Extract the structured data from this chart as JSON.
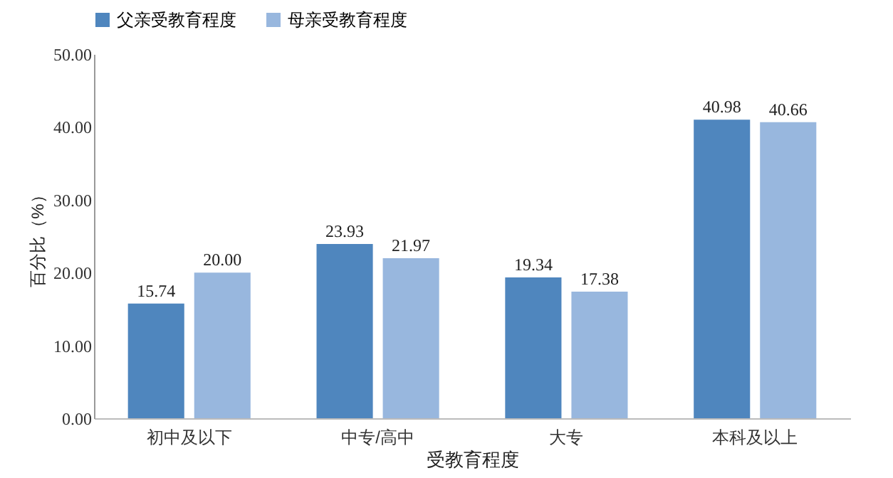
{
  "chart_data": {
    "type": "bar",
    "xlabel": "受教育程度",
    "ylabel": "百分比（%）",
    "categories": [
      "初中及以下",
      "中专/高中",
      "大专",
      "本科及以上"
    ],
    "series": [
      {
        "name": "父亲受教育程度",
        "color": "#4f86be",
        "values": [
          15.74,
          23.93,
          19.34,
          40.98
        ],
        "value_labels": [
          "15.74",
          "23.93",
          "19.34",
          "40.98"
        ]
      },
      {
        "name": "母亲受教育程度",
        "color": "#98b7de",
        "values": [
          20.0,
          21.97,
          17.38,
          40.66
        ],
        "value_labels": [
          "20.00",
          "21.97",
          "17.38",
          "40.66"
        ]
      }
    ],
    "ylim": [
      0,
      50
    ],
    "yticks": [
      {
        "value": 0,
        "label": "0.00"
      },
      {
        "value": 10,
        "label": "10.00"
      },
      {
        "value": 20,
        "label": "20.00"
      },
      {
        "value": 30,
        "label": "30.00"
      },
      {
        "value": 40,
        "label": "40.00"
      },
      {
        "value": 50,
        "label": "50.00"
      }
    ],
    "grid": false,
    "legend": "top"
  }
}
